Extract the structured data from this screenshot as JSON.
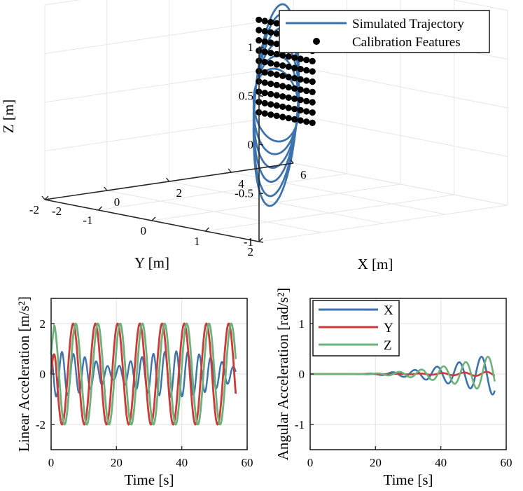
{
  "chart_data": [
    {
      "type": "line",
      "projection": "3d",
      "title": "",
      "xlabel": "X [m]",
      "ylabel": "Y [m]",
      "zlabel": "Z [m]",
      "xlim": [
        -2,
        6
      ],
      "ylim": [
        -2,
        2
      ],
      "zlim": [
        -1,
        1
      ],
      "xticks": [
        -2,
        0,
        2,
        4,
        6
      ],
      "yticks": [
        -2,
        -1,
        0,
        1,
        2
      ],
      "zticks": [
        -1,
        -0.5,
        0,
        0.5,
        1
      ],
      "xtick_labels": [
        "-2",
        "0",
        "2",
        "4",
        "6"
      ],
      "ytick_labels": [
        "-2",
        "-1",
        "0",
        "1",
        "2"
      ],
      "ztick_labels": [
        "-1",
        "-0.5",
        "0",
        "0.5",
        "1"
      ],
      "grid": true,
      "legend": {
        "position": "top-right",
        "entries": [
          "Simulated Trajectory",
          "Calibration Features"
        ]
      },
      "series": [
        {
          "name": "Simulated Trajectory",
          "color": "#3d73ad",
          "description_params": {
            "x_center": 2.0,
            "x_amplitude": 2.0,
            "y_amplitude": 1.5,
            "z_amplitudes": [
              0.3,
              0.45,
              0.6,
              0.75,
              0.9,
              1.0
            ],
            "z_tilt": 0.1
          }
        },
        {
          "name": "Calibration Features",
          "color": "#000000",
          "grid_points": {
            "x": 4.2,
            "y_range": [
              -1.6,
              -0.6
            ],
            "z_range": [
              -0.35,
              0.6
            ],
            "rows": 10,
            "cols": 10
          }
        }
      ]
    },
    {
      "type": "line",
      "title": "",
      "xlabel": "Time [s]",
      "ylabel": "Linear Acceleration [m/s²]",
      "xlim": [
        0,
        60
      ],
      "ylim": [
        -3,
        3
      ],
      "xticks": [
        0,
        20,
        40,
        60
      ],
      "yticks": [
        -2,
        0,
        2
      ],
      "xtick_labels": [
        "0",
        "20",
        "40",
        "60"
      ],
      "ytick_labels": [
        "-2",
        "0",
        "2"
      ],
      "grid": true,
      "t_end": 56.5,
      "series": [
        {
          "name": "X",
          "color": "#3d73ad",
          "amplitude": 0.9,
          "period": 3.5,
          "envelope": "decay-regrow"
        },
        {
          "name": "Y",
          "color": "#cc3b38",
          "amplitude": 2.0,
          "period": 6.8,
          "phase": 1.6
        },
        {
          "name": "Z",
          "color": "#6db27a",
          "amplitude": 2.0,
          "period": 6.8,
          "phase": 0.0
        }
      ]
    },
    {
      "type": "line",
      "title": "",
      "xlabel": "Time [s]",
      "ylabel": "Angular Acceleration [rad/s²]",
      "xlim": [
        0,
        60
      ],
      "ylim": [
        -1.5,
        1.5
      ],
      "xticks": [
        0,
        20,
        40,
        60
      ],
      "yticks": [
        -1,
        0,
        1
      ],
      "xtick_labels": [
        "0",
        "20",
        "40",
        "60"
      ],
      "ytick_labels": [
        "-1",
        "0",
        "1"
      ],
      "grid": true,
      "t_end": 56.5,
      "legend": {
        "position": "top-left",
        "entries": [
          "X",
          "Y",
          "Z"
        ]
      },
      "series": [
        {
          "name": "X",
          "color": "#3d73ad",
          "max_amplitude": 0.42,
          "period": 6.8
        },
        {
          "name": "Y",
          "color": "#cc3b38",
          "max_amplitude": 0.05,
          "period": 6.8
        },
        {
          "name": "Z",
          "color": "#6db27a",
          "max_amplitude": 0.38,
          "period": 6.8
        }
      ]
    }
  ],
  "colors": {
    "blue": "#3d73ad",
    "red": "#cc3b38",
    "green": "#6db27a",
    "grid": "#e6e6e6",
    "axis": "#262626"
  }
}
